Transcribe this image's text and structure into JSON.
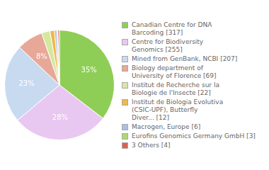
{
  "chart_data": {
    "type": "pie",
    "categories": [
      "Canadian Centre for DNA\nBarcoding [317]",
      "Centre for Biodiversity\nGenomics [255]",
      "Mined from GenBank, NCBI [207]",
      "Biology department of\nUniversity of Florence [69]",
      "Institut de Recherche sur la\nBiologie de l'Insecte [22]",
      "Institut de Biologia Evolutiva\n(CSIC-UPF), Butterfly\nDiver... [12]",
      "Macrogen, Europe [6]",
      "Eurofins Genomics Germany GmbH [3]",
      "3 Others [4]"
    ],
    "values": [
      317,
      255,
      207,
      69,
      22,
      12,
      6,
      3,
      4
    ],
    "value_labels": [
      "35%",
      "28%",
      "23%",
      "8%",
      null,
      null,
      null,
      null,
      null
    ],
    "colors": [
      "#8fce56",
      "#e8c8f0",
      "#c8daf0",
      "#e8a898",
      "#d4e8a0",
      "#f0b84c",
      "#a8c0e0",
      "#b0d870",
      "#e06050"
    ],
    "data_labels": true,
    "legend": "right"
  }
}
